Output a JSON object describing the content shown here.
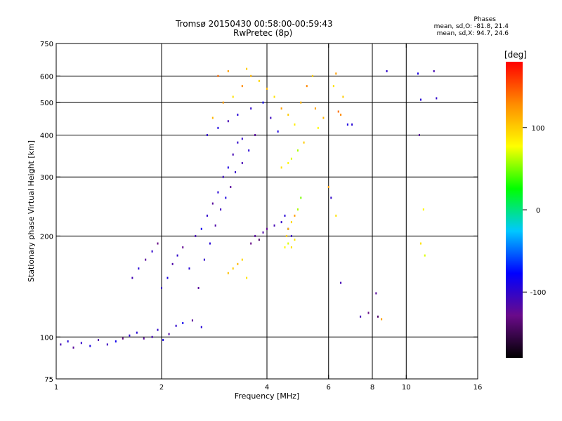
{
  "header": {
    "title_line1": "Tromsø 20150430 00:58:00-00:59:43",
    "title_line2": "RwPretec (8p)"
  },
  "phases_box": {
    "heading": "Phases",
    "line_O": "mean, sd,O: -81.8, 21.4",
    "line_X": "mean, sd,X:  94.7, 24.6"
  },
  "chart_data": {
    "type": "scatter",
    "xlabel": "Frequency [MHz]",
    "ylabel": "Stationary phase Virtual Height [km]",
    "xscale": "log",
    "yscale": "log",
    "xlim": [
      1,
      16
    ],
    "ylim": [
      75,
      750
    ],
    "xticks": [
      1,
      2,
      4,
      6,
      8,
      10,
      16
    ],
    "xtick_labels": [
      "1",
      "2",
      "4",
      "6",
      "8",
      "10",
      "16"
    ],
    "xgrid": [
      2,
      4,
      6,
      8,
      10
    ],
    "yticks": [
      75,
      100,
      200,
      300,
      400,
      500,
      600,
      750
    ],
    "ytick_labels": [
      "75",
      "100",
      "200",
      "300",
      "400",
      "500",
      "600",
      "750"
    ],
    "ygrid": [
      100,
      200,
      300,
      400,
      500,
      600
    ],
    "grid": true,
    "colorbar": {
      "label": "[deg]",
      "range": [
        -180,
        180
      ],
      "ticks": [
        100,
        0,
        -100
      ],
      "tick_labels": [
        "100",
        "0",
        "-100"
      ],
      "colors": [
        "#000000",
        "#6a0a8a",
        "#0000ff",
        "#00c8ff",
        "#00ff00",
        "#ffff00",
        "#ff8c00",
        "#ff0000"
      ]
    },
    "series": [
      {
        "points": [
          [
            1.03,
            95,
            -110
          ],
          [
            1.08,
            97,
            -95
          ],
          [
            1.12,
            93,
            -120
          ],
          [
            1.18,
            96,
            -100
          ],
          [
            1.25,
            94,
            -90
          ],
          [
            1.32,
            98,
            -115
          ],
          [
            1.4,
            95,
            -105
          ],
          [
            1.48,
            97,
            -85
          ],
          [
            1.55,
            99,
            -130
          ],
          [
            1.62,
            101,
            -100
          ],
          [
            1.7,
            103,
            -95
          ],
          [
            1.78,
            99,
            -120
          ],
          [
            1.88,
            100,
            -110
          ],
          [
            1.95,
            105,
            -100
          ],
          [
            2.02,
            98,
            -90
          ],
          [
            2.1,
            102,
            -115
          ],
          [
            2.2,
            108,
            -100
          ],
          [
            2.3,
            110,
            -85
          ],
          [
            2.45,
            112,
            -120
          ],
          [
            2.6,
            107,
            -95
          ],
          [
            1.65,
            150,
            -110
          ],
          [
            1.72,
            160,
            -95
          ],
          [
            1.8,
            170,
            -120
          ],
          [
            1.88,
            180,
            -100
          ],
          [
            1.95,
            190,
            -130
          ],
          [
            2.0,
            140,
            -105
          ],
          [
            2.08,
            150,
            -90
          ],
          [
            2.15,
            165,
            -115
          ],
          [
            2.22,
            175,
            -100
          ],
          [
            2.3,
            185,
            -125
          ],
          [
            2.4,
            160,
            -95
          ],
          [
            2.5,
            200,
            -110
          ],
          [
            2.6,
            210,
            -85
          ],
          [
            2.7,
            230,
            -100
          ],
          [
            2.8,
            250,
            -120
          ],
          [
            2.9,
            270,
            -95
          ],
          [
            3.0,
            300,
            -105
          ],
          [
            3.1,
            320,
            -90
          ],
          [
            3.2,
            350,
            -110
          ],
          [
            3.3,
            380,
            -100
          ],
          [
            2.55,
            140,
            -120
          ],
          [
            2.65,
            170,
            -100
          ],
          [
            2.75,
            190,
            -95
          ],
          [
            2.85,
            215,
            -115
          ],
          [
            2.95,
            240,
            -105
          ],
          [
            3.05,
            260,
            -90
          ],
          [
            3.15,
            280,
            -120
          ],
          [
            3.25,
            310,
            -100
          ],
          [
            3.4,
            330,
            -110
          ],
          [
            3.55,
            360,
            -95
          ],
          [
            3.6,
            190,
            -130
          ],
          [
            3.7,
            200,
            -120
          ],
          [
            3.8,
            195,
            -140
          ],
          [
            3.9,
            205,
            -115
          ],
          [
            4.0,
            210,
            -125
          ],
          [
            4.2,
            215,
            -110
          ],
          [
            4.4,
            220,
            -100
          ],
          [
            4.5,
            230,
            -95
          ],
          [
            4.6,
            210,
            -90
          ],
          [
            4.7,
            200,
            -105
          ],
          [
            3.2,
            160,
            100
          ],
          [
            3.3,
            165,
            110
          ],
          [
            3.4,
            170,
            95
          ],
          [
            3.1,
            155,
            105
          ],
          [
            3.5,
            150,
            90
          ],
          [
            4.5,
            185,
            80
          ],
          [
            4.6,
            190,
            70
          ],
          [
            4.7,
            185,
            90
          ],
          [
            4.8,
            195,
            85
          ],
          [
            4.55,
            200,
            100
          ],
          [
            4.6,
            210,
            110
          ],
          [
            4.7,
            220,
            95
          ],
          [
            4.9,
            240,
            60
          ],
          [
            5.0,
            260,
            50
          ],
          [
            4.8,
            230,
            120
          ],
          [
            4.4,
            320,
            90
          ],
          [
            4.6,
            330,
            80
          ],
          [
            4.7,
            340,
            70
          ],
          [
            4.9,
            360,
            60
          ],
          [
            5.1,
            380,
            100
          ],
          [
            2.8,
            450,
            110
          ],
          [
            3.0,
            500,
            120
          ],
          [
            3.2,
            520,
            90
          ],
          [
            3.4,
            560,
            130
          ],
          [
            3.6,
            600,
            110
          ],
          [
            2.9,
            600,
            140
          ],
          [
            3.1,
            620,
            120
          ],
          [
            3.5,
            630,
            100
          ],
          [
            3.8,
            580,
            95
          ],
          [
            4.0,
            550,
            110
          ],
          [
            4.2,
            520,
            90
          ],
          [
            4.4,
            480,
            120
          ],
          [
            4.6,
            460,
            100
          ],
          [
            4.8,
            430,
            85
          ],
          [
            5.0,
            500,
            110
          ],
          [
            5.2,
            560,
            130
          ],
          [
            5.4,
            600,
            100
          ],
          [
            5.6,
            420,
            80
          ],
          [
            5.8,
            450,
            110
          ],
          [
            5.5,
            480,
            120
          ],
          [
            2.7,
            400,
            -100
          ],
          [
            2.9,
            420,
            -90
          ],
          [
            3.1,
            440,
            -110
          ],
          [
            3.3,
            460,
            -95
          ],
          [
            3.6,
            480,
            -100
          ],
          [
            3.9,
            500,
            -85
          ],
          [
            4.1,
            450,
            -105
          ],
          [
            4.3,
            410,
            -90
          ],
          [
            3.7,
            400,
            -120
          ],
          [
            3.4,
            390,
            -100
          ],
          [
            6.3,
            610,
            120
          ],
          [
            6.4,
            470,
            140
          ],
          [
            6.5,
            460,
            130
          ],
          [
            6.2,
            560,
            90
          ],
          [
            6.6,
            520,
            100
          ],
          [
            6.8,
            430,
            -90
          ],
          [
            7.0,
            430,
            -95
          ],
          [
            7.4,
            115,
            -110
          ],
          [
            7.8,
            118,
            -130
          ],
          [
            8.3,
            115,
            -140
          ],
          [
            8.5,
            113,
            120
          ],
          [
            8.8,
            620,
            -100
          ],
          [
            10.8,
            610,
            -90
          ],
          [
            11.0,
            510,
            -95
          ],
          [
            11.2,
            240,
            80
          ],
          [
            11.0,
            190,
            90
          ],
          [
            11.3,
            175,
            70
          ],
          [
            12.0,
            620,
            -110
          ],
          [
            12.2,
            515,
            -100
          ],
          [
            10.9,
            400,
            -120
          ],
          [
            6.0,
            280,
            120
          ],
          [
            6.1,
            260,
            -100
          ],
          [
            6.3,
            230,
            90
          ],
          [
            6.5,
            145,
            -110
          ],
          [
            8.2,
            135,
            -120
          ]
        ]
      }
    ]
  }
}
